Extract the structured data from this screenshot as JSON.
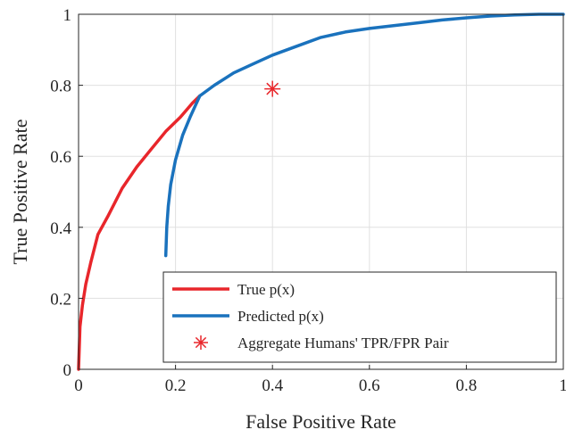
{
  "chart_data": {
    "type": "line",
    "title": "",
    "xlabel": "False Positive Rate",
    "ylabel": "True Positive Rate",
    "xlim": [
      0,
      1
    ],
    "ylim": [
      0,
      1
    ],
    "xticks": [
      "0",
      "0.2",
      "0.4",
      "0.6",
      "0.8",
      "1"
    ],
    "yticks": [
      "0",
      "0.2",
      "0.4",
      "0.6",
      "0.8",
      "1"
    ],
    "grid": true,
    "legend_position": "bottom-right",
    "series": [
      {
        "name": "True p(x)",
        "color": "#e8262b",
        "x": [
          0,
          0.003,
          0.008,
          0.015,
          0.025,
          0.04,
          0.06,
          0.09,
          0.12,
          0.15,
          0.18,
          0.21,
          0.235,
          0.25
        ],
        "y": [
          0,
          0.12,
          0.18,
          0.24,
          0.3,
          0.38,
          0.43,
          0.51,
          0.57,
          0.62,
          0.67,
          0.71,
          0.75,
          0.77
        ]
      },
      {
        "name": "Predicted p(x)",
        "color": "#1a72bd",
        "x": [
          0.18,
          0.182,
          0.185,
          0.19,
          0.2,
          0.215,
          0.23,
          0.25,
          0.28,
          0.32,
          0.36,
          0.4,
          0.45,
          0.5,
          0.55,
          0.6,
          0.65,
          0.7,
          0.75,
          0.8,
          0.85,
          0.9,
          0.95,
          1.0
        ],
        "y": [
          0.32,
          0.4,
          0.46,
          0.52,
          0.59,
          0.66,
          0.71,
          0.77,
          0.8,
          0.835,
          0.86,
          0.885,
          0.91,
          0.935,
          0.95,
          0.96,
          0.968,
          0.976,
          0.984,
          0.99,
          0.995,
          0.998,
          1.0,
          1.0
        ]
      }
    ],
    "points": [
      {
        "name": "Aggregate Humans' TPR/FPR Pair",
        "x": 0.4,
        "y": 0.79,
        "color": "#e8262b",
        "marker": "asterisk"
      }
    ]
  }
}
